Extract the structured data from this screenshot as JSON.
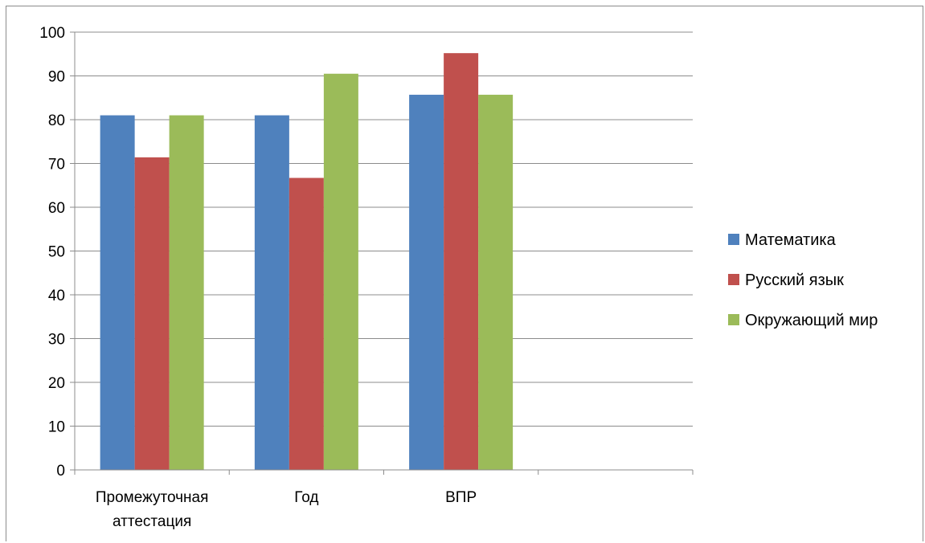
{
  "chart_data": {
    "type": "bar",
    "title": "",
    "xlabel": "",
    "ylabel": "",
    "categories": [
      [
        "Промежуточная",
        "аттестация"
      ],
      [
        "Год"
      ],
      [
        "ВПР"
      ],
      [
        ""
      ]
    ],
    "series": [
      {
        "name": "Математика",
        "color": "#4f81bd",
        "values": [
          81,
          81,
          85.7,
          null
        ]
      },
      {
        "name": "Русский язык",
        "color": "#c0504d",
        "values": [
          71.4,
          66.7,
          95.2,
          null
        ]
      },
      {
        "name": "Окружающий мир",
        "color": "#9bbb59",
        "values": [
          81,
          90.5,
          85.7,
          null
        ]
      }
    ],
    "ylim": [
      0,
      100
    ],
    "yticks": [
      "0",
      "10",
      "20",
      "30",
      "40",
      "50",
      "60",
      "70",
      "80",
      "90",
      "100"
    ],
    "grid": true,
    "legend_position": "right"
  }
}
